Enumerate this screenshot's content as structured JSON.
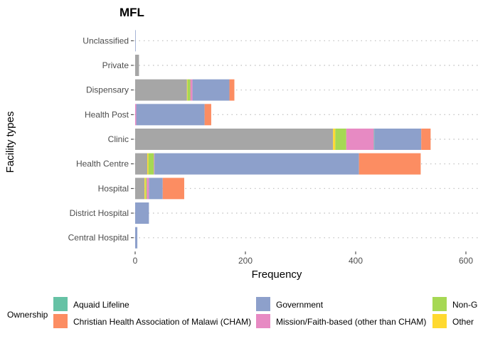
{
  "chart_data": {
    "type": "bar",
    "orientation": "horizontal",
    "stacked": true,
    "title": "MFL",
    "xlabel": "Frequency",
    "ylabel": "Facility types",
    "xlim": [
      0,
      620
    ],
    "xticks": [
      0,
      200,
      400,
      600
    ],
    "grid": "dotted horizontal lines at each category",
    "legend_position": "bottom",
    "legend_title": "Ownership",
    "categories": [
      "Central Hospital",
      "District Hospital",
      "Hospital",
      "Health Centre",
      "Clinic",
      "Health Post",
      "Dispensary",
      "Private",
      "Unclassified"
    ],
    "series": [
      {
        "name": "",
        "color": "#a6a6a6",
        "values": [
          0,
          0,
          17,
          22,
          359,
          0,
          94,
          7,
          0
        ]
      },
      {
        "name": "Other",
        "color": "#ffd92f",
        "values": [
          0,
          0,
          2,
          2,
          4,
          0,
          1,
          0,
          0
        ]
      },
      {
        "name": "Non-G",
        "color": "#a6d854",
        "values": [
          0,
          0,
          2,
          10,
          20,
          0,
          5,
          0,
          0
        ]
      },
      {
        "name": "Mission/Faith-based (other than CHAM)",
        "color": "#e78ac3",
        "values": [
          0,
          0,
          4,
          1,
          50,
          2,
          4,
          0,
          0
        ]
      },
      {
        "name": "Aquaid Lifeline",
        "color": "#66c2a5",
        "values": [
          0,
          0,
          0,
          0,
          1,
          0,
          0,
          0,
          0
        ]
      },
      {
        "name": "Government",
        "color": "#8da0cb",
        "values": [
          4,
          25,
          25,
          371,
          85,
          124,
          67,
          0,
          1
        ]
      },
      {
        "name": "Christian Health Association of Malawi (CHAM)",
        "color": "#fc8d62",
        "values": [
          0,
          0,
          39,
          112,
          17,
          12,
          9,
          0,
          0
        ]
      }
    ]
  },
  "legend": {
    "title": "Ownership",
    "items": [
      {
        "label": "Aquaid Lifeline",
        "color": "#66c2a5"
      },
      {
        "label": "Christian Health Association of Malawi (CHAM)",
        "color": "#fc8d62"
      },
      {
        "label": "Government",
        "color": "#8da0cb"
      },
      {
        "label": "Mission/Faith-based (other than CHAM)",
        "color": "#e78ac3"
      },
      {
        "label": "Non-G",
        "color": "#a6d854"
      },
      {
        "label": "Other",
        "color": "#ffd92f"
      }
    ]
  }
}
